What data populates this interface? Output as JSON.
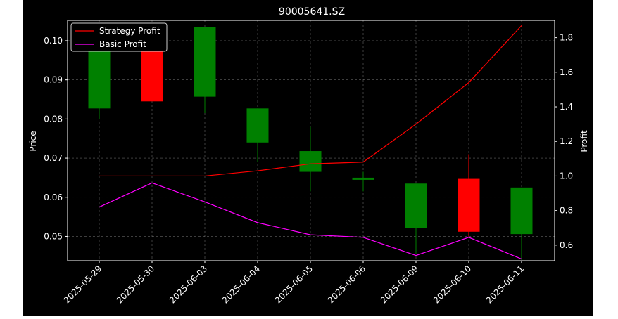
{
  "chart_data": {
    "type": "candlestick",
    "title": "90005641.SZ",
    "ylabel": "Price",
    "y2label": "Profit",
    "categories": [
      "2025-05-29",
      "2025-05-30",
      "2025-06-03",
      "2025-06-04",
      "2025-06-05",
      "2025-06-06",
      "2025-06-09",
      "2025-06-10",
      "2025-06-11"
    ],
    "ylim": [
      0.0438,
      0.1052
    ],
    "y2lim": [
      0.51,
      1.9
    ],
    "yticks": [
      "0.05",
      "0.06",
      "0.07",
      "0.08",
      "0.09",
      "0.10"
    ],
    "y2ticks": [
      "0.6",
      "0.8",
      "1.0",
      "1.2",
      "1.4",
      "1.6",
      "1.8"
    ],
    "candles": [
      {
        "open": 0.0827,
        "close": 0.1,
        "high": 0.103,
        "low": 0.08,
        "color": "green"
      },
      {
        "open": 0.1,
        "close": 0.0845,
        "high": 0.1,
        "low": 0.0845,
        "color": "red"
      },
      {
        "open": 0.0857,
        "close": 0.1035,
        "high": 0.1035,
        "low": 0.0815,
        "color": "green"
      },
      {
        "open": 0.074,
        "close": 0.0827,
        "high": 0.0827,
        "low": 0.069,
        "color": "green"
      },
      {
        "open": 0.0665,
        "close": 0.0718,
        "high": 0.078,
        "low": 0.0615,
        "color": "green"
      },
      {
        "open": 0.0645,
        "close": 0.065,
        "high": 0.0665,
        "low": 0.0615,
        "color": "green"
      },
      {
        "open": 0.0522,
        "close": 0.0635,
        "high": 0.0635,
        "low": 0.0455,
        "color": "green"
      },
      {
        "open": 0.0647,
        "close": 0.0512,
        "high": 0.071,
        "low": 0.05,
        "color": "red"
      },
      {
        "open": 0.0506,
        "close": 0.0625,
        "high": 0.0625,
        "low": 0.044,
        "color": "green"
      }
    ],
    "series": [
      {
        "name": "Strategy Profit",
        "color": "#ff0000",
        "values": [
          1.0,
          1.0,
          1.0,
          1.03,
          1.07,
          1.08,
          1.3,
          1.54,
          1.87
        ]
      },
      {
        "name": "Basic Profit",
        "color": "#ff00ff",
        "values": [
          0.82,
          0.96,
          0.85,
          0.73,
          0.66,
          0.645,
          0.54,
          0.645,
          0.52
        ]
      }
    ],
    "grid": true,
    "legend": "top-left",
    "colors": {
      "background": "#000000",
      "up": "#008000",
      "down": "#ff0000",
      "grid": "#b0b0b0",
      "axis": "#ffffff"
    }
  }
}
